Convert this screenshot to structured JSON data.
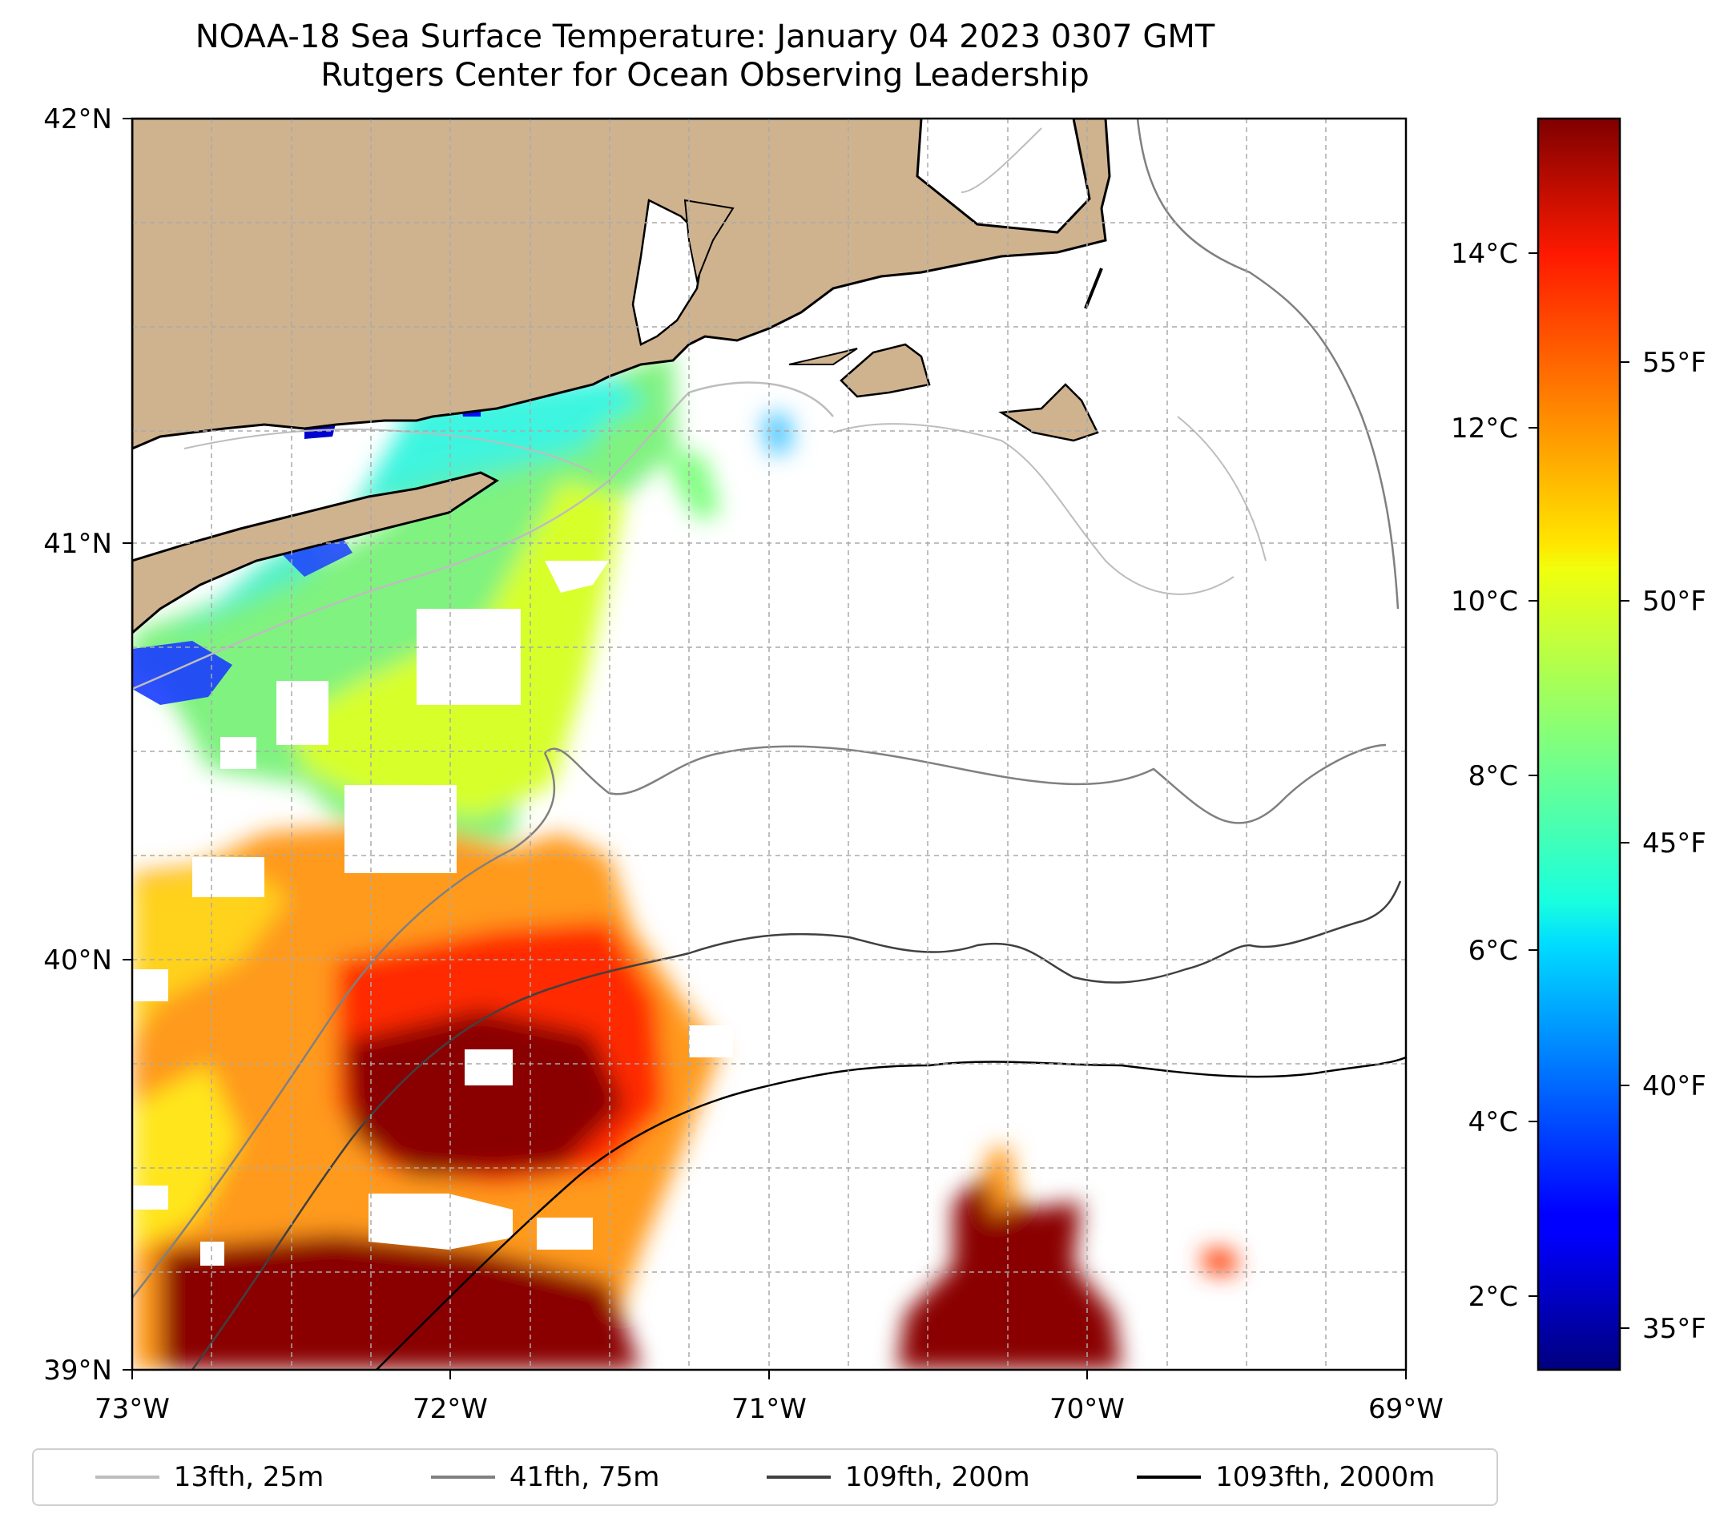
{
  "title": {
    "line1": "NOAA-18 Sea Surface Temperature: January 04 2023 0307 GMT",
    "line2": "Rutgers Center for Ocean Observing Leadership"
  },
  "map": {
    "lon_range": [
      -73,
      -69
    ],
    "lat_range": [
      39,
      42
    ],
    "lon_ticks": [
      "73°W",
      "72°W",
      "71°W",
      "70°W",
      "69°W"
    ],
    "lat_ticks": [
      "39°N",
      "40°N",
      "41°N",
      "42°N"
    ],
    "grid": true,
    "land_color": "#cfb38f",
    "no_data_color": "#ffffff"
  },
  "colorbar": {
    "colormap": "jet",
    "celsius_ticks": [
      "2°C",
      "4°C",
      "6°C",
      "8°C",
      "10°C",
      "12°C",
      "14°C"
    ],
    "fahrenheit_ticks": [
      "35°F",
      "40°F",
      "45°F",
      "50°F",
      "55°F"
    ]
  },
  "legend": [
    {
      "label": "13fth, 25m",
      "color": "#bdbdbd"
    },
    {
      "label": "41fth, 75m",
      "color": "#808080"
    },
    {
      "label": "109fth, 200m",
      "color": "#404040"
    },
    {
      "label": "1093fth, 2000m",
      "color": "#000000"
    }
  ]
}
